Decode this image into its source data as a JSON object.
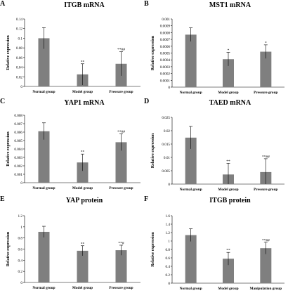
{
  "chart_data": [
    {
      "letter": "A",
      "type": "bar",
      "title": "ITGB mRNA",
      "ylabel": "Relative expression",
      "categories": [
        "Normal group",
        "Model group",
        "Pressure group"
      ],
      "values": [
        0.1,
        0.025,
        0.047
      ],
      "errors": [
        0.022,
        0.022,
        0.025
      ],
      "annotations": [
        "",
        "**",
        "**##"
      ],
      "ylim": [
        0,
        0.14
      ],
      "yticks": [
        "0",
        "0.02",
        "0.04",
        "0.06",
        "0.08",
        "0.1",
        "0.12",
        "0.14"
      ],
      "bar_color": "#7f7f7f"
    },
    {
      "letter": "B",
      "type": "bar",
      "title": "MST1 mRNA",
      "ylabel": "Relative expression",
      "categories": [
        "Normal group",
        "Model group",
        "Pressure group"
      ],
      "values": [
        0.00077,
        0.00041,
        0.00052
      ],
      "errors": [
        0.0001,
        0.0001,
        0.0001
      ],
      "annotations": [
        "",
        "*",
        "*"
      ],
      "ylim": [
        0,
        0.001
      ],
      "yticks": [
        "0",
        "0.0001",
        "0.0002",
        "0.0003",
        "0.0004",
        "0.0005",
        "0.0006",
        "0.0007",
        "0.0008",
        "0.0009",
        "0.001"
      ],
      "bar_color": "#7f7f7f"
    },
    {
      "letter": "C",
      "type": "bar",
      "title": "YAP1 mRNA",
      "ylabel": "Relative expression",
      "categories": [
        "Normal group",
        "Model group",
        "Pressure group"
      ],
      "values": [
        0.0061,
        0.0024,
        0.0048
      ],
      "errors": [
        0.001,
        0.001,
        0.001
      ],
      "annotations": [
        "",
        "**",
        "**##"
      ],
      "ylim": [
        0,
        0.008
      ],
      "yticks": [
        "0",
        "0.001",
        "0.002",
        "0.003",
        "0.004",
        "0.005",
        "0.006",
        "0.007",
        "0.008"
      ],
      "bar_color": "#7f7f7f"
    },
    {
      "letter": "D",
      "type": "bar",
      "title": "TAED mRNA",
      "ylabel": "Relative expression",
      "categories": [
        "Normal group",
        "Model group",
        "Pressure group"
      ],
      "values": [
        0.0174,
        0.0036,
        0.0045
      ],
      "errors": [
        0.0042,
        0.0042,
        0.005
      ],
      "annotations": [
        "",
        "**",
        "**##"
      ],
      "ylim": [
        0,
        0.025
      ],
      "yticks": [
        "0",
        "0.005",
        "0.01",
        "0.015",
        "0.02",
        "0.025"
      ],
      "bar_color": "#7f7f7f"
    },
    {
      "letter": "E",
      "type": "bar",
      "title": "YAP protein",
      "ylabel": "Relative expression",
      "categories": [
        "Normal group",
        "Model group",
        "Pressure group"
      ],
      "values": [
        0.91,
        0.57,
        0.58
      ],
      "errors": [
        0.1,
        0.09,
        0.09
      ],
      "annotations": [
        "",
        "**",
        "**#"
      ],
      "ylim": [
        0,
        1.2
      ],
      "yticks": [
        "0",
        "0.2",
        "0.4",
        "0.6",
        "0.8",
        "1",
        "1.2"
      ],
      "bar_color": "#7f7f7f"
    },
    {
      "letter": "F",
      "type": "bar",
      "title": "ITGB protein",
      "ylabel": "Relative expression",
      "categories": [
        "Normal group",
        "Model group",
        "Manipulation group"
      ],
      "values": [
        1.14,
        0.58,
        0.83
      ],
      "errors": [
        0.15,
        0.15,
        0.14
      ],
      "annotations": [
        "",
        "**",
        "**##"
      ],
      "ylim": [
        0,
        1.6
      ],
      "yticks": [
        "0",
        "0.2",
        "0.4",
        "0.6",
        "0.8",
        "1",
        "1.2",
        "1.4",
        "1.6"
      ],
      "bar_color": "#7f7f7f"
    }
  ]
}
